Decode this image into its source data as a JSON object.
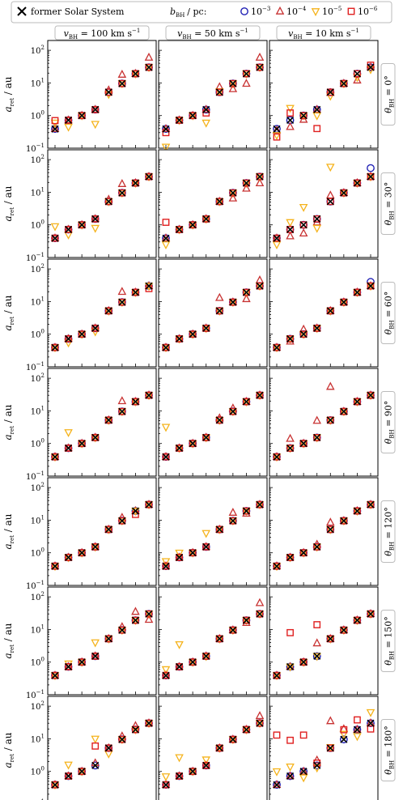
{
  "legend": {
    "former_label": "former Solar System",
    "b_label": "b",
    "b_sub": "BH",
    "b_unit": "/ pc:",
    "entries": [
      {
        "series": "1e-3",
        "base": "10",
        "exp": "−3",
        "color": "#1f1fb4",
        "marker": "circle"
      },
      {
        "series": "1e-4",
        "base": "10",
        "exp": "−4",
        "color": "#c83232",
        "marker": "triangle-up"
      },
      {
        "series": "1e-5",
        "base": "10",
        "exp": "−5",
        "color": "#f5b31c",
        "marker": "triangle-down"
      },
      {
        "series": "1e-6",
        "base": "10",
        "exp": "−6",
        "color": "#e02020",
        "marker": "square"
      }
    ]
  },
  "columns": [
    {
      "v": "100",
      "unit": "km s",
      "exp": "−1"
    },
    {
      "v": "50",
      "unit": "km s",
      "exp": "−1"
    },
    {
      "v": "10",
      "unit": "km s",
      "exp": "−1"
    }
  ],
  "v_symbol": "v",
  "v_sub": "BH",
  "rows": [
    {
      "theta": "0°"
    },
    {
      "theta": "30°"
    },
    {
      "theta": "60°"
    },
    {
      "theta": "90°"
    },
    {
      "theta": "120°"
    },
    {
      "theta": "150°"
    },
    {
      "theta": "180°"
    }
  ],
  "theta_symbol": "θ",
  "theta_sub": "BH",
  "ylabel": {
    "sym": "a",
    "sub": "ret",
    "unit": "/ au"
  },
  "y_ticks": [
    {
      "value": -1,
      "base": "10",
      "exp": "−1"
    },
    {
      "value": 0,
      "base": "10",
      "exp": "0"
    },
    {
      "value": 1,
      "base": "10",
      "exp": "1"
    },
    {
      "value": 2,
      "base": "10",
      "exp": "2"
    }
  ],
  "planet_symbols": [
    "☿",
    "♀",
    "⊕",
    "♂",
    "♃",
    "♄",
    "⛢",
    "♆"
  ],
  "chart_data": {
    "type": "scatter",
    "yscale": "log",
    "ylim": [
      0.1,
      200
    ],
    "former_solar_system": [
      0.387,
      0.723,
      1.0,
      1.524,
      5.2,
      9.58,
      19.2,
      30.07
    ],
    "panels": [
      [
        {
          "1e-3": [
            0.39,
            0.72,
            1.0,
            1.52,
            5.2,
            9.58,
            19.2,
            30.1
          ],
          "1e-4": [
            0.39,
            0.72,
            1.0,
            1.52,
            6.0,
            18.0,
            19.2,
            60.0
          ],
          "1e-5": [
            0.6,
            0.45,
            1.0,
            0.55,
            4.5,
            9.58,
            19.2,
            30.1
          ],
          "1e-6": [
            0.7,
            0.72,
            1.0,
            1.52,
            5.2,
            9.58,
            19.2,
            30.1
          ]
        },
        {
          "1e-3": [
            0.39,
            0.72,
            1.0,
            1.52,
            5.2,
            9.58,
            19.2,
            30.1
          ],
          "1e-4": [
            0.39,
            0.72,
            1.0,
            1.52,
            7.5,
            6.5,
            9.5,
            60.0
          ],
          "1e-5": [
            0.11,
            0.72,
            1.0,
            0.6,
            5.5,
            9.58,
            19.2,
            30.1
          ],
          "1e-6": [
            0.3,
            0.72,
            1.0,
            1.2,
            5.2,
            9.58,
            19.2,
            30.1
          ]
        },
        {
          "1e-3": [
            0.39,
            0.72,
            1.0,
            1.52,
            5.2,
            9.58,
            19.2,
            30.1
          ],
          "1e-4": [
            0.35,
            0.45,
            0.75,
            1.52,
            5.0,
            9.58,
            12.0,
            30.0
          ],
          "1e-5": [
            0.25,
            1.7,
            1.0,
            1.0,
            4.0,
            9.58,
            15.0,
            26.0
          ],
          "1e-6": [
            0.22,
            1.2,
            1.0,
            0.4,
            5.2,
            9.58,
            19.2,
            35.0
          ]
        }
      ],
      [
        {
          "1e-3": [
            0.39,
            0.72,
            1.0,
            1.52,
            5.2,
            9.58,
            19.2,
            30.1
          ],
          "1e-4": [
            0.39,
            0.72,
            1.0,
            1.52,
            6.0,
            18.0,
            19.2,
            30.1
          ],
          "1e-5": [
            0.9,
            0.5,
            1.0,
            0.8,
            5.2,
            9.58,
            19.2,
            30.1
          ],
          "1e-6": [
            0.39,
            0.72,
            1.0,
            1.52,
            5.2,
            9.58,
            19.2,
            30.1
          ]
        },
        {
          "1e-3": [
            0.39,
            0.72,
            1.0,
            1.52,
            5.2,
            9.58,
            19.2,
            30.1
          ],
          "1e-4": [
            0.39,
            0.72,
            1.0,
            1.52,
            5.2,
            6.5,
            13.0,
            19.0
          ],
          "1e-5": [
            0.25,
            0.72,
            1.0,
            1.52,
            5.2,
            9.58,
            19.2,
            30.1
          ],
          "1e-6": [
            1.2,
            0.72,
            1.0,
            1.52,
            5.2,
            9.58,
            19.2,
            30.1
          ]
        },
        {
          "1e-3": [
            0.39,
            0.72,
            1.0,
            1.52,
            5.2,
            9.58,
            19.2,
            55.0
          ],
          "1e-4": [
            0.39,
            0.45,
            0.55,
            1.2,
            8.0,
            9.58,
            19.2,
            30.1
          ],
          "1e-5": [
            0.25,
            1.2,
            3.5,
            0.8,
            60.0,
            9.58,
            19.2,
            30.1
          ],
          "1e-6": [
            0.39,
            0.72,
            1.0,
            1.52,
            5.2,
            9.58,
            19.2,
            30.1
          ]
        }
      ],
      [
        {
          "1e-3": [
            0.39,
            0.72,
            1.0,
            1.52,
            5.2,
            9.58,
            19.2,
            30.1
          ],
          "1e-4": [
            0.39,
            0.72,
            1.0,
            1.52,
            5.2,
            20.0,
            19.2,
            30.1
          ],
          "1e-5": [
            0.39,
            0.55,
            1.0,
            1.2,
            5.2,
            9.58,
            19.2,
            30.1
          ],
          "1e-6": [
            0.39,
            0.72,
            1.0,
            1.52,
            5.2,
            9.58,
            19.2,
            25.0
          ]
        },
        {
          "1e-3": [
            0.39,
            0.72,
            1.0,
            1.52,
            5.2,
            9.58,
            19.2,
            30.1
          ],
          "1e-4": [
            0.39,
            0.72,
            1.0,
            1.52,
            13.0,
            9.58,
            12.0,
            45.0
          ],
          "1e-5": [
            0.39,
            0.72,
            1.0,
            1.52,
            5.2,
            9.58,
            19.2,
            30.1
          ],
          "1e-6": [
            0.39,
            0.72,
            1.0,
            1.52,
            5.2,
            9.58,
            19.2,
            30.1
          ]
        },
        {
          "1e-3": [
            0.39,
            0.72,
            1.0,
            1.52,
            5.2,
            9.58,
            19.2,
            40.0
          ],
          "1e-4": [
            0.39,
            0.6,
            1.4,
            1.52,
            5.2,
            9.58,
            19.2,
            30.1
          ],
          "1e-5": [
            0.39,
            0.72,
            1.0,
            1.52,
            5.2,
            9.58,
            19.2,
            30.1
          ],
          "1e-6": [
            0.39,
            0.72,
            1.0,
            1.52,
            5.2,
            9.58,
            19.2,
            30.1
          ]
        }
      ],
      [
        {
          "1e-3": [
            0.39,
            0.72,
            1.0,
            1.52,
            5.2,
            9.58,
            19.2,
            30.1
          ],
          "1e-4": [
            0.39,
            0.72,
            1.0,
            1.52,
            5.2,
            20.0,
            19.2,
            30.1
          ],
          "1e-5": [
            0.39,
            2.2,
            1.0,
            1.52,
            5.2,
            9.58,
            19.2,
            30.1
          ],
          "1e-6": [
            0.39,
            0.72,
            1.0,
            1.52,
            5.2,
            9.58,
            19.2,
            30.1
          ]
        },
        {
          "1e-3": [
            0.39,
            0.72,
            1.0,
            1.52,
            5.2,
            9.58,
            19.2,
            30.1
          ],
          "1e-4": [
            0.39,
            0.72,
            1.0,
            1.52,
            6.0,
            12.0,
            19.2,
            30.1
          ],
          "1e-5": [
            3.2,
            0.72,
            1.0,
            1.52,
            5.2,
            9.58,
            19.2,
            30.1
          ],
          "1e-6": [
            0.39,
            0.72,
            1.0,
            1.52,
            5.2,
            9.58,
            19.2,
            30.1
          ]
        },
        {
          "1e-3": [
            0.39,
            0.72,
            1.0,
            1.52,
            5.2,
            9.58,
            19.2,
            30.1
          ],
          "1e-4": [
            0.39,
            1.4,
            1.0,
            5.0,
            55.0,
            9.58,
            19.2,
            30.1
          ],
          "1e-5": [
            0.39,
            0.72,
            1.0,
            1.52,
            5.2,
            9.58,
            19.2,
            30.1
          ],
          "1e-6": [
            0.39,
            0.72,
            1.0,
            1.52,
            5.2,
            9.58,
            19.2,
            30.1
          ]
        }
      ],
      [
        {
          "1e-3": [
            0.39,
            0.72,
            1.0,
            1.52,
            5.2,
            9.58,
            19.2,
            30.1
          ],
          "1e-4": [
            0.39,
            0.72,
            1.0,
            1.52,
            5.2,
            12.0,
            19.2,
            30.1
          ],
          "1e-5": [
            0.39,
            0.72,
            1.0,
            1.52,
            5.2,
            9.58,
            19.2,
            30.1
          ],
          "1e-6": [
            0.39,
            0.72,
            1.0,
            1.52,
            5.2,
            9.58,
            15.0,
            30.1
          ]
        },
        {
          "1e-3": [
            0.39,
            0.72,
            1.0,
            1.52,
            5.2,
            9.58,
            19.2,
            30.1
          ],
          "1e-4": [
            0.39,
            0.72,
            1.0,
            1.52,
            5.2,
            17.0,
            16.0,
            30.1
          ],
          "1e-5": [
            0.55,
            1.0,
            1.0,
            4.0,
            5.2,
            9.58,
            19.2,
            30.1
          ],
          "1e-6": [
            0.39,
            0.72,
            1.0,
            1.52,
            5.2,
            9.58,
            19.2,
            30.1
          ]
        },
        {
          "1e-3": [
            0.39,
            0.72,
            1.0,
            1.52,
            5.2,
            9.58,
            19.2,
            30.1
          ],
          "1e-4": [
            0.39,
            0.72,
            1.0,
            1.8,
            8.5,
            9.58,
            19.2,
            30.1
          ],
          "1e-5": [
            0.39,
            0.72,
            1.0,
            1.52,
            5.2,
            9.58,
            19.2,
            30.1
          ],
          "1e-6": [
            0.39,
            0.72,
            1.0,
            1.52,
            5.2,
            9.58,
            19.2,
            30.1
          ]
        }
      ],
      [
        {
          "1e-3": [
            0.39,
            0.72,
            1.0,
            1.52,
            5.2,
            9.58,
            19.2,
            30.1
          ],
          "1e-4": [
            0.39,
            0.72,
            1.0,
            1.52,
            5.2,
            12.0,
            35.0,
            20.0
          ],
          "1e-5": [
            0.39,
            0.9,
            1.0,
            4.0,
            5.2,
            9.58,
            19.2,
            30.1
          ],
          "1e-6": [
            0.39,
            0.72,
            1.0,
            1.52,
            5.2,
            9.58,
            19.2,
            30.1
          ]
        },
        {
          "1e-3": [
            0.39,
            0.72,
            1.0,
            1.52,
            5.2,
            9.58,
            19.2,
            30.1
          ],
          "1e-4": [
            0.39,
            0.72,
            1.0,
            1.52,
            5.2,
            9.58,
            16.0,
            65.0
          ],
          "1e-5": [
            0.6,
            3.5,
            1.0,
            1.52,
            5.2,
            9.58,
            19.2,
            30.1
          ],
          "1e-6": [
            0.39,
            0.72,
            1.0,
            1.52,
            5.2,
            9.58,
            19.2,
            30.1
          ]
        },
        {
          "1e-3": [
            0.39,
            0.72,
            1.0,
            1.52,
            5.2,
            9.58,
            19.2,
            30.1
          ],
          "1e-4": [
            0.39,
            0.72,
            1.0,
            3.8,
            5.2,
            9.58,
            19.2,
            30.1
          ],
          "1e-5": [
            0.39,
            0.72,
            1.0,
            1.52,
            5.2,
            9.58,
            19.2,
            30.1
          ],
          "1e-6": [
            0.39,
            8.0,
            1.0,
            14.0,
            5.2,
            9.58,
            19.2,
            30.1
          ]
        }
      ],
      [
        {
          "1e-3": [
            0.39,
            0.72,
            1.0,
            1.52,
            5.2,
            9.58,
            19.2,
            30.1
          ],
          "1e-4": [
            0.39,
            0.72,
            1.0,
            1.8,
            5.2,
            12.0,
            25.0,
            30.1
          ],
          "1e-5": [
            0.39,
            1.6,
            1.0,
            10.0,
            3.5,
            9.58,
            19.2,
            30.1
          ],
          "1e-6": [
            0.39,
            0.72,
            1.0,
            6.0,
            5.2,
            9.58,
            19.2,
            30.1
          ]
        },
        {
          "1e-3": [
            0.39,
            0.72,
            1.0,
            1.52,
            5.2,
            9.58,
            19.2,
            30.1
          ],
          "1e-4": [
            0.39,
            0.72,
            1.0,
            1.52,
            5.2,
            9.58,
            19.2,
            50.0
          ],
          "1e-5": [
            0.7,
            2.7,
            1.0,
            2.3,
            5.2,
            9.58,
            19.2,
            30.1
          ],
          "1e-6": [
            0.39,
            0.72,
            1.0,
            1.52,
            5.2,
            9.58,
            19.2,
            30.1
          ]
        },
        {
          "1e-3": [
            0.39,
            0.72,
            1.0,
            1.52,
            5.2,
            9.58,
            19.2,
            30.1
          ],
          "1e-4": [
            0.39,
            0.72,
            1.0,
            2.2,
            35.0,
            20.0,
            19.2,
            30.1
          ],
          "1e-5": [
            1.0,
            1.4,
            0.65,
            1.3,
            5.5,
            14.0,
            12.0,
            65.0
          ],
          "1e-6": [
            13.0,
            9.0,
            13.0,
            1.8,
            5.2,
            19.0,
            38.0,
            20.0
          ]
        }
      ]
    ]
  }
}
